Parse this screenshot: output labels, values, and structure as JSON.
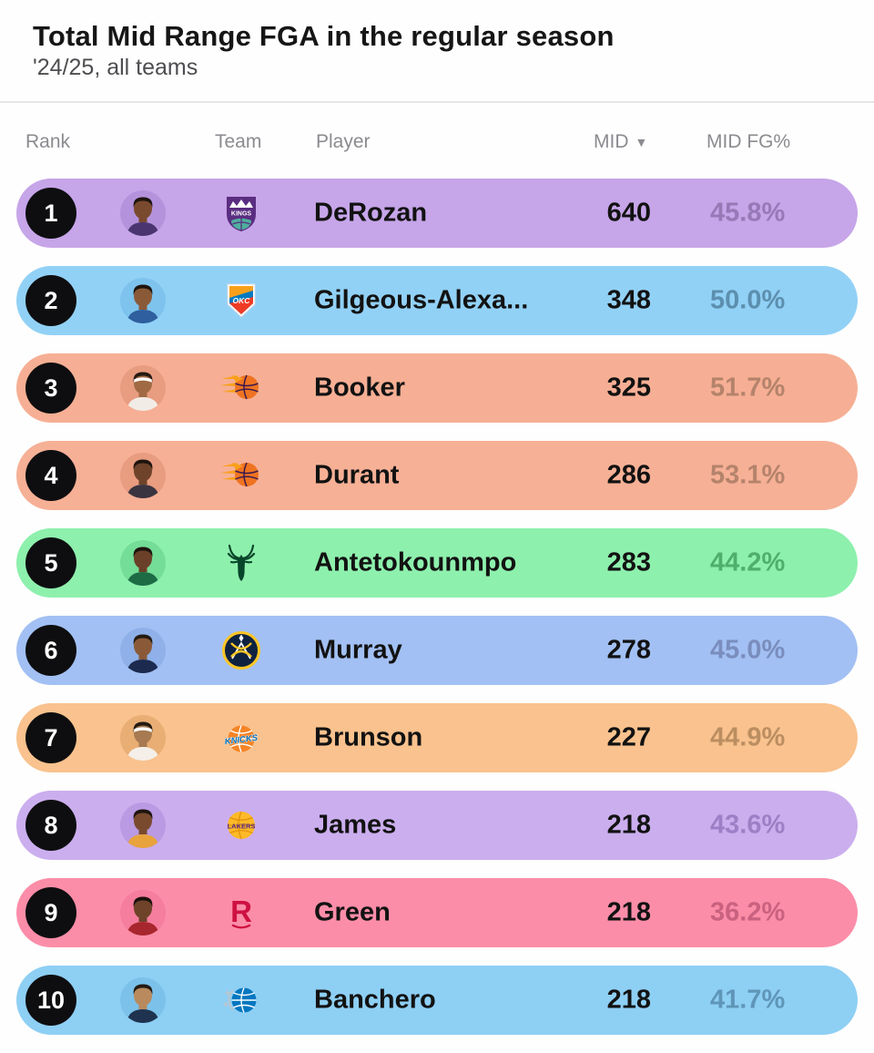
{
  "header": {
    "title": "Total Mid Range FGA in the regular season",
    "subtitle": "'24/25, all teams"
  },
  "table": {
    "columns": {
      "rank": "Rank",
      "team": "Team",
      "player": "Player",
      "mid": "MID",
      "mid_fg": "MID FG%"
    },
    "sort_indicator": "▼",
    "sorted_by": "MID descending"
  },
  "teams": {
    "kings": {
      "name": "Sacramento Kings",
      "label": "KINGS",
      "primary": "#5a2d81",
      "secondary": "#4fae9e"
    },
    "thunder": {
      "name": "Oklahoma City Thunder",
      "label": "OKC",
      "primary": "#007ac1",
      "secondary": "#ef3b24",
      "accent": "#f9a01b"
    },
    "suns": {
      "name": "Phoenix Suns",
      "label": "",
      "primary": "#ef7321",
      "secondary": "#f9a01b",
      "dark": "#3d1a4e"
    },
    "bucks": {
      "name": "Milwaukee Bucks",
      "label": "",
      "primary": "#07462a"
    },
    "nuggets": {
      "name": "Denver Nuggets",
      "label": "",
      "primary": "#0e2240",
      "secondary": "#fec524"
    },
    "knicks": {
      "name": "New York Knicks",
      "label": "KNICKS",
      "primary": "#f58426",
      "secondary": "#006bb6"
    },
    "lakers": {
      "name": "Los Angeles Lakers",
      "label": "LAKERS",
      "primary": "#fdb927",
      "secondary": "#552583",
      "seam": "#e0920e"
    },
    "rockets": {
      "name": "Houston Rockets",
      "label": "R",
      "primary": "#ce1141"
    },
    "magic": {
      "name": "Orlando Magic",
      "label": "",
      "primary": "#0077c0",
      "secondary": "#b9c6ce"
    }
  },
  "rows": [
    {
      "rank": "1",
      "player": "DeRozan",
      "team": "Sacramento Kings",
      "team_key": "kings",
      "mid": "640",
      "fg": "45.8%",
      "colors": {
        "bg": "#c6a5e9",
        "pct": "#9679b6",
        "avatar": "#b493dc"
      },
      "avatar": {
        "skin": "#7a4a2e",
        "hair": "#1e140e",
        "jersey": "#4a3570",
        "headband": ""
      }
    },
    {
      "rank": "2",
      "player": "Gilgeous-Alexa...",
      "team": "Oklahoma City Thunder",
      "team_key": "thunder",
      "mid": "348",
      "fg": "50.0%",
      "colors": {
        "bg": "#92d1f6",
        "pct": "#5c8fae",
        "avatar": "#7ec3ed"
      },
      "avatar": {
        "skin": "#8a5a38",
        "hair": "#1e140e",
        "jersey": "#2f5f9e",
        "headband": ""
      }
    },
    {
      "rank": "3",
      "player": "Booker",
      "team": "Phoenix Suns",
      "team_key": "suns",
      "mid": "325",
      "fg": "51.7%",
      "colors": {
        "bg": "#f6af94",
        "pct": "#b4836b",
        "avatar": "#e89c80"
      },
      "avatar": {
        "skin": "#a06a44",
        "hair": "#241a12",
        "jersey": "#f2ece6",
        "headband": "#ffffff"
      }
    },
    {
      "rank": "4",
      "player": "Durant",
      "team": "Phoenix Suns",
      "team_key": "suns",
      "mid": "286",
      "fg": "53.1%",
      "colors": {
        "bg": "#f6b096",
        "pct": "#b4836b",
        "avatar": "#e89c80"
      },
      "avatar": {
        "skin": "#6e432a",
        "hair": "#1e140e",
        "jersey": "#3a3440",
        "headband": ""
      }
    },
    {
      "rank": "5",
      "player": "Antetokounmpo",
      "team": "Milwaukee Bucks",
      "team_key": "bucks",
      "mid": "283",
      "fg": "44.2%",
      "colors": {
        "bg": "#8ef0ad",
        "pct": "#4fae6e",
        "avatar": "#74dd97"
      },
      "avatar": {
        "skin": "#6b4028",
        "hair": "#1e140e",
        "jersey": "#1d6b45",
        "headband": ""
      }
    },
    {
      "rank": "6",
      "player": "Murray",
      "team": "Denver Nuggets",
      "team_key": "nuggets",
      "mid": "278",
      "fg": "45.0%",
      "colors": {
        "bg": "#a2c0f3",
        "pct": "#7a8dbd",
        "avatar": "#8fb0e8"
      },
      "avatar": {
        "skin": "#8a5a38",
        "hair": "#241a12",
        "jersey": "#1d2a4f",
        "headband": ""
      }
    },
    {
      "rank": "7",
      "player": "Brunson",
      "team": "New York Knicks",
      "team_key": "knicks",
      "mid": "227",
      "fg": "44.9%",
      "colors": {
        "bg": "#f9c28e",
        "pct": "#bb8e61",
        "avatar": "#e9ae74"
      },
      "avatar": {
        "skin": "#a77a52",
        "hair": "#241a12",
        "jersey": "#f4efe8",
        "headband": "#ffffff"
      }
    },
    {
      "rank": "8",
      "player": "James",
      "team": "Los Angeles Lakers",
      "team_key": "lakers",
      "mid": "218",
      "fg": "43.6%",
      "colors": {
        "bg": "#cbaeee",
        "pct": "#9c7fc4",
        "avatar": "#ba9ae2"
      },
      "avatar": {
        "skin": "#7a4a2e",
        "hair": "#1e140e",
        "jersey": "#e8a33c",
        "headband": ""
      }
    },
    {
      "rank": "9",
      "player": "Green",
      "team": "Houston Rockets",
      "team_key": "rockets",
      "mid": "218",
      "fg": "36.2%",
      "colors": {
        "bg": "#fb8da8",
        "pct": "#c9617f",
        "avatar": "#f57d9d"
      },
      "avatar": {
        "skin": "#6e432a",
        "hair": "#1a110c",
        "jersey": "#a8262e",
        "headband": ""
      }
    },
    {
      "rank": "10",
      "player": "Banchero",
      "team": "Orlando Magic",
      "team_key": "magic",
      "mid": "218",
      "fg": "41.7%",
      "colors": {
        "bg": "#8ecff4",
        "pct": "#5f96b8",
        "avatar": "#7bc1ea"
      },
      "avatar": {
        "skin": "#b98a5e",
        "hair": "#241a12",
        "jersey": "#1f3350",
        "headband": ""
      }
    }
  ],
  "chart_data": {
    "type": "table",
    "title": "Total Mid Range FGA in the regular season",
    "subtitle": "'24/25, all teams",
    "columns": [
      "Rank",
      "Team",
      "Player",
      "MID",
      "MID FG%"
    ],
    "sorted_by": "MID descending",
    "rows": [
      [
        1,
        "Sacramento Kings",
        "DeRozan",
        640,
        "45.8%"
      ],
      [
        2,
        "Oklahoma City Thunder",
        "Gilgeous-Alexa...",
        348,
        "50.0%"
      ],
      [
        3,
        "Phoenix Suns",
        "Booker",
        325,
        "51.7%"
      ],
      [
        4,
        "Phoenix Suns",
        "Durant",
        286,
        "53.1%"
      ],
      [
        5,
        "Milwaukee Bucks",
        "Antetokounmpo",
        283,
        "44.2%"
      ],
      [
        6,
        "Denver Nuggets",
        "Murray",
        278,
        "45.0%"
      ],
      [
        7,
        "New York Knicks",
        "Brunson",
        227,
        "44.9%"
      ],
      [
        8,
        "Los Angeles Lakers",
        "James",
        218,
        "43.6%"
      ],
      [
        9,
        "Houston Rockets",
        "Green",
        218,
        "36.2%"
      ],
      [
        10,
        "Orlando Magic",
        "Banchero",
        218,
        "41.7%"
      ]
    ]
  }
}
